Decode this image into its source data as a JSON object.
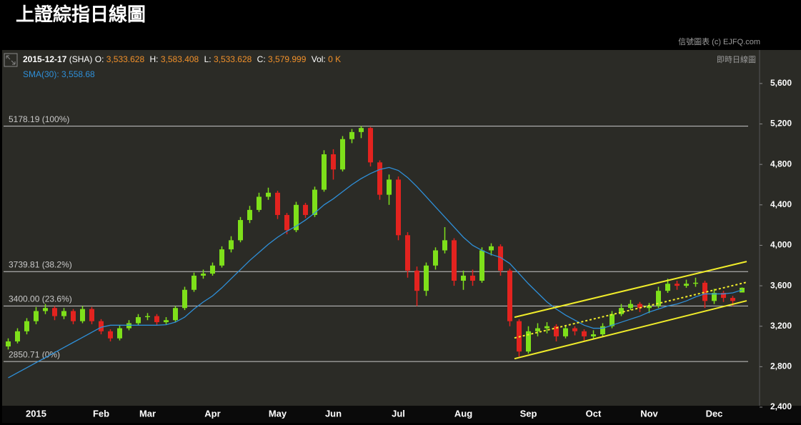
{
  "chart_data": {
    "type": "candlestick",
    "title": "上證綜指日線圖",
    "copyright": "信號圖表 (c) EJFQ.com",
    "subtitle": "即時日線圖",
    "info": {
      "date": "2015-12-17",
      "symbol": "(SHA)",
      "open_label": "O:",
      "open": "3,533.628",
      "high_label": "H:",
      "high": "3,583.408",
      "low_label": "L:",
      "low": "3,533.628",
      "close_label": "C:",
      "close": "3,579.999",
      "vol_label": "Vol:",
      "vol": "0 K",
      "sma": "SMA(30): 3,558.68"
    },
    "categories": [
      null,
      null,
      null,
      "2015",
      null,
      null,
      null,
      null,
      null,
      null,
      "Feb",
      null,
      null,
      null,
      null,
      "Mar",
      null,
      null,
      null,
      null,
      null,
      null,
      "Apr",
      null,
      null,
      null,
      null,
      null,
      null,
      "May",
      null,
      null,
      null,
      null,
      null,
      "Jun",
      null,
      null,
      null,
      null,
      null,
      null,
      "Jul",
      null,
      null,
      null,
      null,
      null,
      null,
      "Aug",
      null,
      null,
      null,
      null,
      null,
      null,
      "Sep",
      null,
      null,
      null,
      null,
      null,
      null,
      "Oct",
      null,
      null,
      null,
      null,
      null,
      "Nov",
      null,
      null,
      null,
      null,
      null,
      null,
      "Dec",
      null,
      null,
      null
    ],
    "candles": [
      [
        3000,
        3080,
        2970,
        3050
      ],
      [
        3050,
        3180,
        3030,
        3150
      ],
      [
        3150,
        3280,
        3120,
        3250
      ],
      [
        3250,
        3390,
        3220,
        3350
      ],
      [
        3350,
        3420,
        3320,
        3380
      ],
      [
        3380,
        3400,
        3260,
        3300
      ],
      [
        3300,
        3380,
        3270,
        3350
      ],
      [
        3350,
        3370,
        3220,
        3250
      ],
      [
        3250,
        3400,
        3230,
        3370
      ],
      [
        3370,
        3390,
        3220,
        3250
      ],
      [
        3250,
        3270,
        3120,
        3150
      ],
      [
        3150,
        3170,
        3050,
        3080
      ],
      [
        3080,
        3210,
        3060,
        3180
      ],
      [
        3180,
        3260,
        3160,
        3230
      ],
      [
        3230,
        3320,
        3210,
        3290
      ],
      [
        3290,
        3330,
        3260,
        3300
      ],
      [
        3300,
        3320,
        3210,
        3240
      ],
      [
        3240,
        3290,
        3220,
        3260
      ],
      [
        3260,
        3400,
        3240,
        3380
      ],
      [
        3380,
        3590,
        3360,
        3560
      ],
      [
        3560,
        3730,
        3540,
        3700
      ],
      [
        3700,
        3760,
        3670,
        3720
      ],
      [
        3720,
        3830,
        3700,
        3800
      ],
      [
        3800,
        3990,
        3780,
        3960
      ],
      [
        3960,
        4090,
        3930,
        4050
      ],
      [
        4050,
        4280,
        4030,
        4250
      ],
      [
        4250,
        4390,
        4220,
        4350
      ],
      [
        4350,
        4520,
        4330,
        4480
      ],
      [
        4480,
        4570,
        4450,
        4520
      ],
      [
        4520,
        4540,
        4260,
        4300
      ],
      [
        4300,
        4320,
        4110,
        4150
      ],
      [
        4150,
        4430,
        4130,
        4400
      ],
      [
        4400,
        4420,
        4270,
        4300
      ],
      [
        4300,
        4580,
        4280,
        4550
      ],
      [
        4550,
        4940,
        4530,
        4900
      ],
      [
        4900,
        4950,
        4650,
        4750
      ],
      [
        4750,
        5080,
        4730,
        5050
      ],
      [
        5050,
        5150,
        5010,
        5120
      ],
      [
        5120,
        5180,
        5060,
        5160
      ],
      [
        5160,
        5170,
        4780,
        4820
      ],
      [
        4820,
        4840,
        4450,
        4500
      ],
      [
        4500,
        4700,
        4400,
        4650
      ],
      [
        4650,
        4680,
        4050,
        4100
      ],
      [
        4100,
        4130,
        3680,
        3750
      ],
      [
        3750,
        3790,
        3400,
        3550
      ],
      [
        3550,
        3830,
        3500,
        3800
      ],
      [
        3800,
        3980,
        3760,
        3950
      ],
      [
        3950,
        4180,
        3920,
        4050
      ],
      [
        4050,
        4070,
        3600,
        3650
      ],
      [
        3650,
        3750,
        3560,
        3700
      ],
      [
        3700,
        3760,
        3600,
        3650
      ],
      [
        3650,
        3980,
        3630,
        3950
      ],
      [
        3950,
        4020,
        3900,
        3990
      ],
      [
        3990,
        4010,
        3700,
        3750
      ],
      [
        3750,
        3770,
        3200,
        3250
      ],
      [
        3250,
        3270,
        2900,
        2950
      ],
      [
        2950,
        3200,
        2930,
        3150
      ],
      [
        3150,
        3230,
        3100,
        3180
      ],
      [
        3180,
        3240,
        3130,
        3200
      ],
      [
        3200,
        3220,
        3050,
        3100
      ],
      [
        3100,
        3210,
        3080,
        3180
      ],
      [
        3180,
        3200,
        3110,
        3150
      ],
      [
        3150,
        3170,
        3060,
        3100
      ],
      [
        3100,
        3160,
        3080,
        3120
      ],
      [
        3120,
        3230,
        3100,
        3200
      ],
      [
        3200,
        3350,
        3180,
        3320
      ],
      [
        3320,
        3420,
        3300,
        3380
      ],
      [
        3380,
        3460,
        3360,
        3420
      ],
      [
        3420,
        3440,
        3340,
        3380
      ],
      [
        3380,
        3430,
        3330,
        3400
      ],
      [
        3400,
        3590,
        3380,
        3550
      ],
      [
        3550,
        3670,
        3530,
        3620
      ],
      [
        3620,
        3650,
        3560,
        3600
      ],
      [
        3600,
        3660,
        3580,
        3620
      ],
      [
        3620,
        3680,
        3590,
        3630
      ],
      [
        3630,
        3650,
        3380,
        3450
      ],
      [
        3450,
        3570,
        3420,
        3530
      ],
      [
        3530,
        3550,
        3440,
        3480
      ],
      [
        3480,
        3500,
        3400,
        3450
      ],
      [
        3533.628,
        3583.408,
        3533.628,
        3579.999
      ]
    ],
    "up_color": "#7ee01a",
    "down_color": "#e3231f",
    "sma": {
      "color": "#2e8fd8",
      "values": [
        2690,
        2740,
        2790,
        2840,
        2890,
        2940,
        2990,
        3040,
        3090,
        3140,
        3190,
        3210,
        3210,
        3210,
        3210,
        3210,
        3210,
        3215,
        3240,
        3290,
        3370,
        3440,
        3500,
        3580,
        3670,
        3760,
        3850,
        3930,
        4010,
        4080,
        4140,
        4190,
        4250,
        4320,
        4400,
        4460,
        4530,
        4600,
        4660,
        4710,
        4750,
        4770,
        4740,
        4670,
        4580,
        4480,
        4380,
        4280,
        4180,
        4080,
        4000,
        3950,
        3910,
        3880,
        3820,
        3720,
        3620,
        3530,
        3440,
        3370,
        3310,
        3260,
        3210,
        3180,
        3180,
        3210,
        3240,
        3270,
        3300,
        3340,
        3370,
        3400,
        3420,
        3450,
        3490,
        3520,
        3520,
        3520,
        3530,
        3558.68
      ]
    },
    "levels": [
      {
        "value": 5178.19,
        "label": "5178.19 (100%)"
      },
      {
        "value": 3739.81,
        "label": "3739.81 (38.2%)"
      },
      {
        "value": 3400.0,
        "label": "3400.00 (23.6%)"
      },
      {
        "value": 2850.71,
        "label": "2850.71 (0%)"
      }
    ],
    "channel": {
      "color": "#f0ec2a",
      "lines": [
        {
          "x": [
            54.5,
            79.5
          ],
          "y": [
            2879,
            3452
          ],
          "dash": false
        },
        {
          "x": [
            54.5,
            79.5
          ],
          "y": [
            3084,
            3635
          ],
          "dash": true
        },
        {
          "x": [
            54.5,
            79.5
          ],
          "y": [
            3289,
            3840
          ],
          "dash": false
        }
      ]
    },
    "ylim": [
      2400,
      5910
    ],
    "yticks": [
      {
        "value": 2400,
        "label": "2,400"
      },
      {
        "value": 2800,
        "label": "2,800"
      },
      {
        "value": 3200,
        "label": "3,200"
      },
      {
        "value": 3600,
        "label": "3,600"
      },
      {
        "value": 4000,
        "label": "4,000"
      },
      {
        "value": 4400,
        "label": "4,400"
      },
      {
        "value": 4800,
        "label": "4,800"
      },
      {
        "value": 5200,
        "label": "5,200"
      },
      {
        "value": 5600,
        "label": "5,600"
      }
    ]
  }
}
